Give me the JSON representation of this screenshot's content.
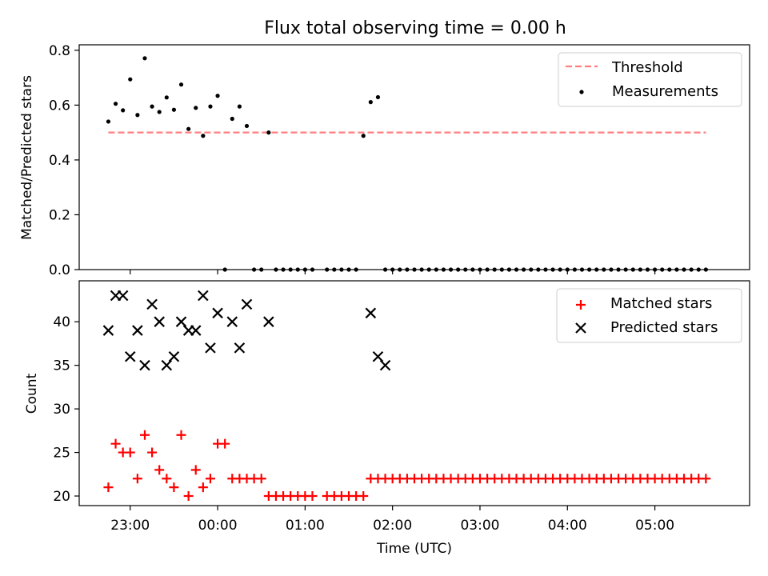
{
  "title": "Flux total observing time = 0.00 h",
  "chart_data": [
    {
      "type": "scatter",
      "id": "ratio",
      "ylabel": "Matched/Predicted stars",
      "ylim": [
        0,
        0.82
      ],
      "yticks": [
        0.0,
        0.2,
        0.4,
        0.6,
        0.8
      ],
      "ytick_labels": [
        "0.0",
        "0.2",
        "0.4",
        "0.6",
        "0.8"
      ],
      "legend_position": "top-right",
      "threshold": {
        "name": "Threshold",
        "value": 0.5,
        "x_start": "22:45",
        "x_end": "05:35",
        "color": "#ff7f7f"
      },
      "series": [
        {
          "name": "Measurements",
          "color": "#000000",
          "x": [
            "22:45",
            "22:50",
            "22:55",
            "23:00",
            "23:05",
            "23:10",
            "23:15",
            "23:20",
            "23:25",
            "23:30",
            "23:35",
            "23:40",
            "23:45",
            "23:50",
            "23:55",
            "00:00",
            "00:05",
            "00:10",
            "00:15",
            "00:20",
            "00:25",
            "00:30",
            "00:35",
            "00:40",
            "00:45",
            "00:50",
            "00:55",
            "01:00",
            "01:05",
            "01:15",
            "01:20",
            "01:25",
            "01:30",
            "01:35",
            "01:40",
            "01:45",
            "01:50",
            "01:55",
            "02:00",
            "02:05",
            "02:10",
            "02:15",
            "02:20",
            "02:25",
            "02:30",
            "02:35",
            "02:40",
            "02:45",
            "02:50",
            "02:55",
            "03:00",
            "03:05",
            "03:10",
            "03:15",
            "03:20",
            "03:25",
            "03:30",
            "03:35",
            "03:40",
            "03:45",
            "03:50",
            "03:55",
            "04:00",
            "04:05",
            "04:10",
            "04:15",
            "04:20",
            "04:25",
            "04:30",
            "04:35",
            "04:40",
            "04:45",
            "04:50",
            "04:55",
            "05:00",
            "05:05",
            "05:10",
            "05:15",
            "05:20",
            "05:25",
            "05:30",
            "05:35"
          ],
          "y": [
            0.54,
            0.605,
            0.581,
            0.694,
            0.564,
            0.771,
            0.595,
            0.575,
            0.628,
            0.583,
            0.675,
            0.513,
            0.59,
            0.488,
            0.595,
            0.634,
            0.0,
            0.55,
            0.595,
            0.524,
            0.0,
            0.0,
            0.5,
            0.0,
            0.0,
            0.0,
            0.0,
            0.0,
            0.0,
            0.0,
            0.0,
            0.0,
            0.0,
            0.0,
            0.488,
            0.611,
            0.629,
            0.0,
            0.0,
            0.0,
            0.0,
            0.0,
            0.0,
            0.0,
            0.0,
            0.0,
            0.0,
            0.0,
            0.0,
            0.0,
            0.0,
            0.0,
            0.0,
            0.0,
            0.0,
            0.0,
            0.0,
            0.0,
            0.0,
            0.0,
            0.0,
            0.0,
            0.0,
            0.0,
            0.0,
            0.0,
            0.0,
            0.0,
            0.0,
            0.0,
            0.0,
            0.0,
            0.0,
            0.0,
            0.0,
            0.0,
            0.0,
            0.0,
            0.0,
            0.0,
            0.0,
            0.0
          ]
        }
      ]
    },
    {
      "type": "scatter",
      "id": "count",
      "xlabel": "Time (UTC)",
      "ylabel": "Count",
      "ylim": [
        18.9,
        44.7
      ],
      "yticks": [
        20,
        25,
        30,
        35,
        40
      ],
      "ytick_labels": [
        "20",
        "25",
        "30",
        "35",
        "40"
      ],
      "xlim": [
        "22:25",
        "06:05"
      ],
      "xticks": [
        "23:00",
        "00:00",
        "01:00",
        "02:00",
        "03:00",
        "04:00",
        "05:00"
      ],
      "xtick_labels": [
        "23:00",
        "00:00",
        "01:00",
        "02:00",
        "03:00",
        "04:00",
        "05:00"
      ],
      "legend_position": "top-right",
      "series": [
        {
          "name": "Matched stars",
          "marker": "plus",
          "color": "#ff0000",
          "x": [
            "22:45",
            "22:50",
            "22:55",
            "23:00",
            "23:05",
            "23:10",
            "23:15",
            "23:20",
            "23:25",
            "23:30",
            "23:35",
            "23:40",
            "23:45",
            "23:50",
            "23:55",
            "00:00",
            "00:05",
            "00:10",
            "00:15",
            "00:20",
            "00:25",
            "00:30",
            "00:35",
            "00:40",
            "00:45",
            "00:50",
            "00:55",
            "01:00",
            "01:05",
            "01:15",
            "01:20",
            "01:25",
            "01:30",
            "01:35",
            "01:40",
            "01:45",
            "01:50",
            "01:55",
            "02:00",
            "02:05",
            "02:10",
            "02:15",
            "02:20",
            "02:25",
            "02:30",
            "02:35",
            "02:40",
            "02:45",
            "02:50",
            "02:55",
            "03:00",
            "03:05",
            "03:10",
            "03:15",
            "03:20",
            "03:25",
            "03:30",
            "03:35",
            "03:40",
            "03:45",
            "03:50",
            "03:55",
            "04:00",
            "04:05",
            "04:10",
            "04:15",
            "04:20",
            "04:25",
            "04:30",
            "04:35",
            "04:40",
            "04:45",
            "04:50",
            "04:55",
            "05:00",
            "05:05",
            "05:10",
            "05:15",
            "05:20",
            "05:25",
            "05:30",
            "05:35"
          ],
          "y": [
            21,
            26,
            25,
            25,
            22,
            27,
            25,
            23,
            22,
            21,
            27,
            20,
            23,
            21,
            22,
            26,
            26,
            22,
            22,
            22,
            22,
            22,
            20,
            20,
            20,
            20,
            20,
            20,
            20,
            20,
            20,
            20,
            20,
            20,
            20,
            22,
            22,
            22,
            22,
            22,
            22,
            22,
            22,
            22,
            22,
            22,
            22,
            22,
            22,
            22,
            22,
            22,
            22,
            22,
            22,
            22,
            22,
            22,
            22,
            22,
            22,
            22,
            22,
            22,
            22,
            22,
            22,
            22,
            22,
            22,
            22,
            22,
            22,
            22,
            22,
            22,
            22,
            22,
            22,
            22,
            22,
            22
          ]
        },
        {
          "name": "Predicted stars",
          "marker": "x",
          "color": "#000000",
          "x": [
            "22:45",
            "22:50",
            "22:55",
            "23:00",
            "23:05",
            "23:10",
            "23:15",
            "23:20",
            "23:25",
            "23:30",
            "23:35",
            "23:40",
            "23:45",
            "23:50",
            "23:55",
            "00:00",
            "00:10",
            "00:15",
            "00:20",
            "00:35",
            "01:45",
            "01:50",
            "01:55"
          ],
          "y": [
            39,
            43,
            43,
            36,
            39,
            35,
            42,
            40,
            35,
            36,
            40,
            39,
            39,
            43,
            37,
            41,
            40,
            37,
            42,
            40,
            41,
            36,
            35
          ]
        }
      ]
    }
  ]
}
